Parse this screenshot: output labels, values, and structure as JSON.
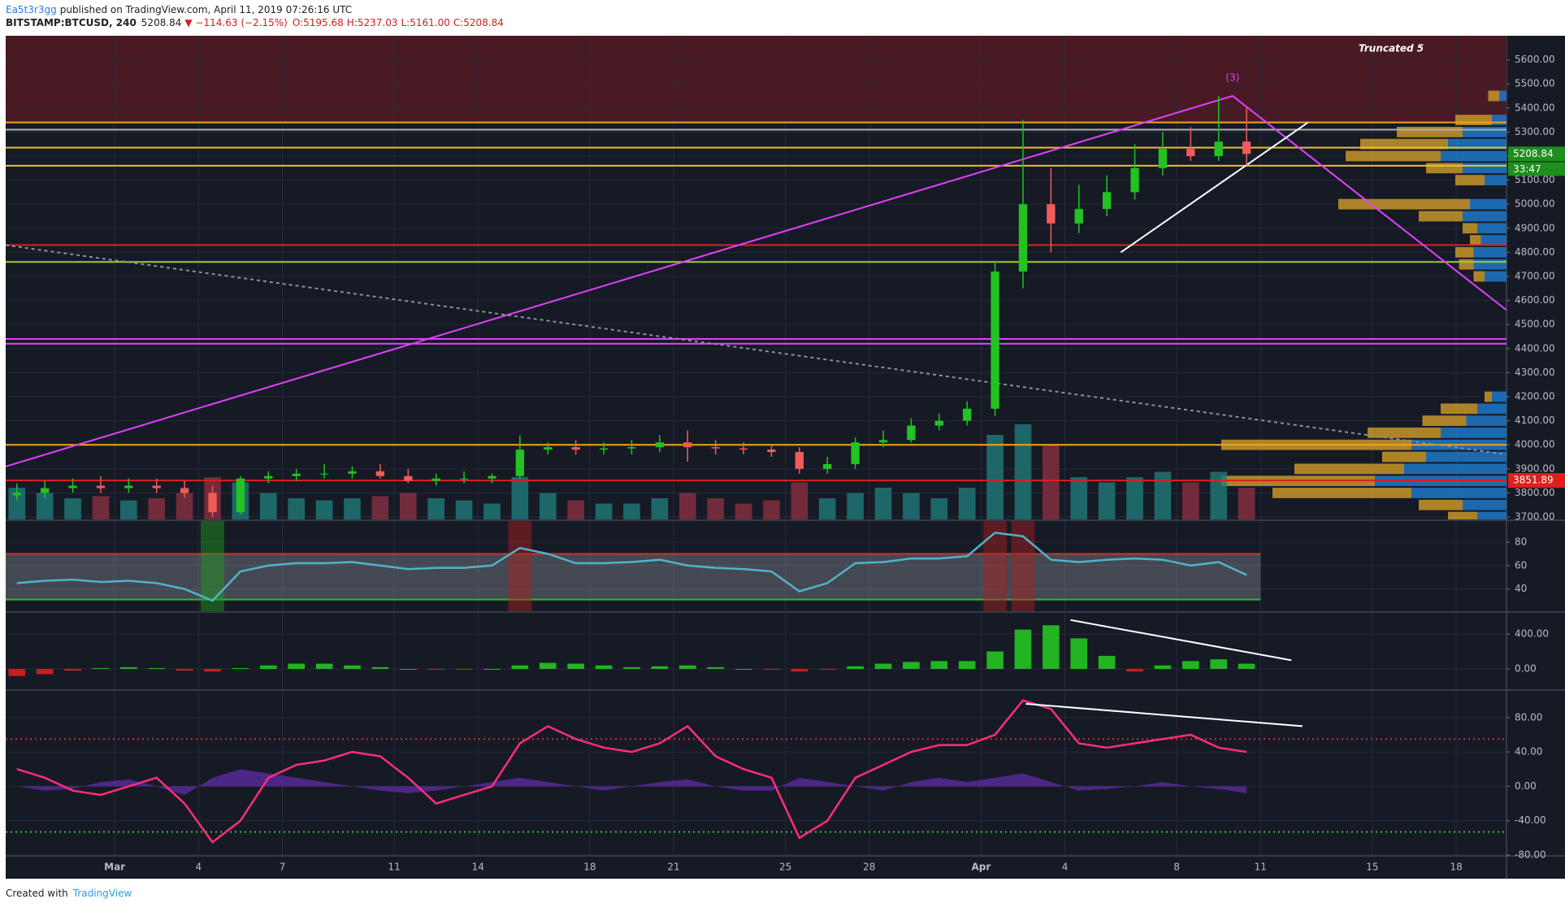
{
  "header": {
    "author": "Ea5t3r3gg",
    "published": "published on TradingView.com, April 11, 2019 07:26:16 UTC",
    "symbol": "BITSTAMP:BTCUSD, 240",
    "last": "5208.84",
    "change": "▼ −114.63 (−2.15%)",
    "open": "O:5195.68",
    "high": "H:5237.03",
    "low": "L:5161.00",
    "close": "C:5208.84"
  },
  "footer": {
    "created": "Created with",
    "brand": "TradingView"
  },
  "chart_data": [
    {
      "type": "candlestick",
      "title": "Truncated 5",
      "up_color": "#22c322",
      "down_color": "#f25b5b",
      "red_zone_from": 5340,
      "x": [
        -3.5,
        -2.5,
        -1.5,
        -0.5,
        0.5,
        1.5,
        2.5,
        3.5,
        4.5,
        5.5,
        6.5,
        7.5,
        8.5,
        9.5,
        10.5,
        11.5,
        12.5,
        13.5,
        14.5,
        15.5,
        16.5,
        17.5,
        18.5,
        19.5,
        20.5,
        21.5,
        22.5,
        23.5,
        24.5,
        25.5,
        26.5,
        27.5,
        28.5,
        29.5,
        30.5,
        31.5,
        32.5,
        33.5,
        34.5,
        35.5,
        36.5,
        37.5,
        38.5,
        39.5,
        40.5
      ],
      "open": [
        3790,
        3800,
        3820,
        3830,
        3820,
        3830,
        3820,
        3800,
        3720,
        3860,
        3870,
        3880,
        3880,
        3890,
        3870,
        3850,
        3860,
        3860,
        3870,
        3980,
        3990,
        3980,
        3985,
        3990,
        4010,
        3990,
        3985,
        3980,
        3970,
        3900,
        3920,
        4010,
        4020,
        4080,
        4100,
        4150,
        4720,
        5000,
        4920,
        4980,
        5050,
        5150,
        5230,
        5200,
        5260
      ],
      "high": [
        3840,
        3850,
        3860,
        3870,
        3860,
        3860,
        3850,
        3830,
        3870,
        3890,
        3900,
        3920,
        3910,
        3920,
        3900,
        3880,
        3890,
        3880,
        4040,
        4010,
        4020,
        4010,
        4020,
        4040,
        4060,
        4020,
        4010,
        4000,
        3990,
        3950,
        4030,
        4060,
        4110,
        4130,
        4180,
        4760,
        5350,
        5150,
        5080,
        5120,
        5250,
        5300,
        5320,
        5450,
        5400
      ],
      "low": [
        3770,
        3780,
        3800,
        3800,
        3800,
        3800,
        3780,
        3700,
        3710,
        3840,
        3850,
        3860,
        3860,
        3860,
        3840,
        3830,
        3840,
        3840,
        3860,
        3960,
        3960,
        3960,
        3960,
        3970,
        3930,
        3960,
        3960,
        3950,
        3880,
        3880,
        3900,
        3990,
        4010,
        4060,
        4080,
        4120,
        4650,
        4800,
        4880,
        4950,
        5020,
        5120,
        5180,
        5180,
        5160
      ],
      "close": [
        3800,
        3820,
        3830,
        3820,
        3830,
        3820,
        3800,
        3720,
        3860,
        3870,
        3880,
        3880,
        3890,
        3870,
        3850,
        3860,
        3860,
        3870,
        3980,
        3990,
        3980,
        3985,
        3990,
        4010,
        3990,
        3985,
        3980,
        3970,
        3900,
        3920,
        4010,
        4020,
        4080,
        4100,
        4150,
        4720,
        5000,
        4920,
        4980,
        5050,
        5150,
        5230,
        5200,
        5260,
        5209
      ],
      "volume": [
        30,
        25,
        20,
        22,
        18,
        20,
        25,
        40,
        35,
        25,
        20,
        18,
        20,
        22,
        25,
        20,
        18,
        15,
        40,
        25,
        18,
        15,
        15,
        20,
        25,
        20,
        15,
        18,
        35,
        20,
        25,
        30,
        25,
        20,
        30,
        80,
        90,
        70,
        40,
        35,
        40,
        45,
        35,
        45,
        30
      ],
      "xlim": [
        -3.9,
        49.8
      ],
      "xticks": [
        {
          "value": 0,
          "label": "Mar"
        },
        {
          "value": 3,
          "label": "4"
        },
        {
          "value": 6,
          "label": "7"
        },
        {
          "value": 10,
          "label": "11"
        },
        {
          "value": 13,
          "label": "14"
        },
        {
          "value": 17,
          "label": "18"
        },
        {
          "value": 20,
          "label": "21"
        },
        {
          "value": 24,
          "label": "25"
        },
        {
          "value": 27,
          "label": "28"
        },
        {
          "value": 31,
          "label": "Apr"
        },
        {
          "value": 34,
          "label": "4"
        },
        {
          "value": 38,
          "label": "8"
        },
        {
          "value": 41,
          "label": "11"
        },
        {
          "value": 45,
          "label": "15"
        },
        {
          "value": 48,
          "label": "18"
        }
      ],
      "ylim": [
        3690,
        5700
      ],
      "yticks": [
        {
          "value": 3700,
          "label": "3700.00"
        },
        {
          "value": 3800,
          "label": "3800.00"
        },
        {
          "value": 3900,
          "label": "3900.00"
        },
        {
          "value": 4000,
          "label": "4000.00"
        },
        {
          "value": 4100,
          "label": "4100.00"
        },
        {
          "value": 4200,
          "label": "4200.00"
        },
        {
          "value": 4300,
          "label": "4300.00"
        },
        {
          "value": 4400,
          "label": "4400.00"
        },
        {
          "value": 4500,
          "label": "4500.00"
        },
        {
          "value": 4600,
          "label": "4600.00"
        },
        {
          "value": 4700,
          "label": "4700.00"
        },
        {
          "value": 4800,
          "label": "4800.00"
        },
        {
          "value": 4900,
          "label": "4900.00"
        },
        {
          "value": 5000,
          "label": "5000.00"
        },
        {
          "value": 5100,
          "label": "5100.00"
        },
        {
          "value": 5200,
          "label": "5200.00"
        },
        {
          "value": 5300,
          "label": "5300.00"
        },
        {
          "value": 5400,
          "label": "5400.00"
        },
        {
          "value": 5500,
          "label": "5500.00"
        },
        {
          "value": 5600,
          "label": "5600.00"
        }
      ],
      "levels": [
        {
          "value": 5340,
          "color": "#f7a21b"
        },
        {
          "value": 5310,
          "color": "#b0b0b0"
        },
        {
          "value": 5235,
          "color": "#e6c229"
        },
        {
          "value": 5160,
          "color": "#e6c229"
        },
        {
          "value": 4830,
          "color": "#e01e1e"
        },
        {
          "value": 4760,
          "color": "#9acd32"
        },
        {
          "value": 4440,
          "color": "#e040fb"
        },
        {
          "value": 4420,
          "color": "#e040fb"
        },
        {
          "value": 4000,
          "color": "#f7a21b"
        },
        {
          "value": 3851.89,
          "color": "#e01e1e"
        }
      ],
      "last_price": 5208.84,
      "last_color": "#1e8e1e",
      "timer": "33:47",
      "trendlines": [
        {
          "color": "#e040fb",
          "x": [
            -3.9,
            40.0,
            49.8
          ],
          "y": [
            3910,
            5450,
            4560
          ]
        },
        {
          "color": "#ffffff",
          "x": [
            36,
            42.7
          ],
          "y": [
            4800,
            5340
          ]
        },
        {
          "color": "#8a8f99",
          "dashed": true,
          "x": [
            -3.9,
            49.8
          ],
          "y": [
            4830,
            3960
          ]
        }
      ],
      "annotations": [
        {
          "text": "(3)",
          "x": 40,
          "y": 5525,
          "color": "#e040fb"
        }
      ],
      "profile": {
        "prices": [
          5450,
          5350,
          5300,
          5250,
          5200,
          5150,
          5100,
          5000,
          4950,
          4900,
          4850,
          4800,
          4750,
          4700,
          4200,
          4150,
          4100,
          4050,
          4000,
          3950,
          3900,
          3850,
          3800,
          3750,
          3700
        ],
        "down": [
          10,
          20,
          60,
          80,
          90,
          60,
          30,
          50,
          60,
          40,
          35,
          45,
          45,
          30,
          20,
          40,
          55,
          90,
          130,
          110,
          140,
          180,
          130,
          60,
          40
        ],
        "up": [
          15,
          50,
          90,
          120,
          130,
          50,
          40,
          180,
          60,
          20,
          15,
          25,
          20,
          15,
          10,
          50,
          60,
          100,
          260,
          60,
          150,
          210,
          190,
          60,
          40
        ],
        "down_color": "#1f78c8",
        "up_color": "#c8962a"
      }
    },
    {
      "type": "line",
      "color": "#4fb3c8",
      "values": [
        45,
        47,
        48,
        46,
        47,
        45,
        40,
        30,
        55,
        60,
        62,
        62,
        63,
        60,
        57,
        58,
        58,
        60,
        75,
        70,
        62,
        62,
        63,
        65,
        60,
        58,
        57,
        55,
        38,
        45,
        62,
        63,
        66,
        66,
        68,
        88,
        85,
        65,
        63,
        65,
        66,
        65,
        60,
        63,
        52
      ],
      "ylim": [
        21,
        98
      ],
      "yticks": [
        40,
        60,
        80
      ],
      "bands": [
        31,
        70
      ]
    },
    {
      "type": "bar",
      "up_color": "#22b422",
      "down_color": "#c81e1e",
      "values": [
        -80,
        -60,
        -20,
        10,
        20,
        10,
        -20,
        -30,
        10,
        40,
        60,
        60,
        40,
        20,
        0,
        -10,
        -10,
        0,
        40,
        70,
        60,
        40,
        20,
        30,
        40,
        20,
        0,
        -10,
        -30,
        -10,
        30,
        60,
        80,
        90,
        90,
        200,
        450,
        500,
        350,
        150,
        -30,
        40,
        90,
        110,
        60
      ],
      "ylim": [
        -233,
        642
      ],
      "yticks": [
        {
          "value": 0,
          "label": "0.00"
        },
        {
          "value": 400,
          "label": "400.00"
        }
      ],
      "trendlines": [
        {
          "color": "#ffffff",
          "x": [
            34.2,
            42.1
          ],
          "y": [
            560,
            100
          ]
        }
      ]
    },
    {
      "type": "line",
      "color": "#ff2e7a",
      "values": [
        20,
        10,
        -5,
        -10,
        0,
        10,
        -20,
        -65,
        -40,
        10,
        25,
        30,
        40,
        35,
        10,
        -20,
        -10,
        0,
        50,
        70,
        55,
        45,
        40,
        50,
        70,
        35,
        20,
        10,
        -60,
        -40,
        10,
        25,
        40,
        48,
        48,
        60,
        100,
        90,
        50,
        45,
        50,
        55,
        60,
        45,
        40
      ],
      "area": [
        0,
        -5,
        -3,
        5,
        8,
        0,
        -10,
        10,
        20,
        15,
        10,
        5,
        0,
        -5,
        -8,
        -5,
        0,
        5,
        10,
        5,
        0,
        -5,
        0,
        5,
        8,
        0,
        -5,
        -5,
        10,
        5,
        0,
        -5,
        5,
        10,
        5,
        10,
        15,
        5,
        -5,
        -3,
        0,
        5,
        0,
        -3,
        -8
      ],
      "area_color": "#5b2a9e",
      "ylim": [
        -80,
        111
      ],
      "yticks": [
        {
          "value": -80,
          "label": "-80.00"
        },
        {
          "value": -40,
          "label": "-40.00"
        },
        {
          "value": 0,
          "label": "0.00"
        },
        {
          "value": 40,
          "label": "40.00"
        },
        {
          "value": 80,
          "label": "80.00"
        }
      ],
      "levels": [
        {
          "value": 55,
          "color": "#c83232"
        },
        {
          "value": -53,
          "color": "#32c832"
        }
      ],
      "trendlines": [
        {
          "color": "#ffffff",
          "x": [
            32.6,
            42.5
          ],
          "y": [
            96,
            70
          ]
        }
      ]
    }
  ]
}
